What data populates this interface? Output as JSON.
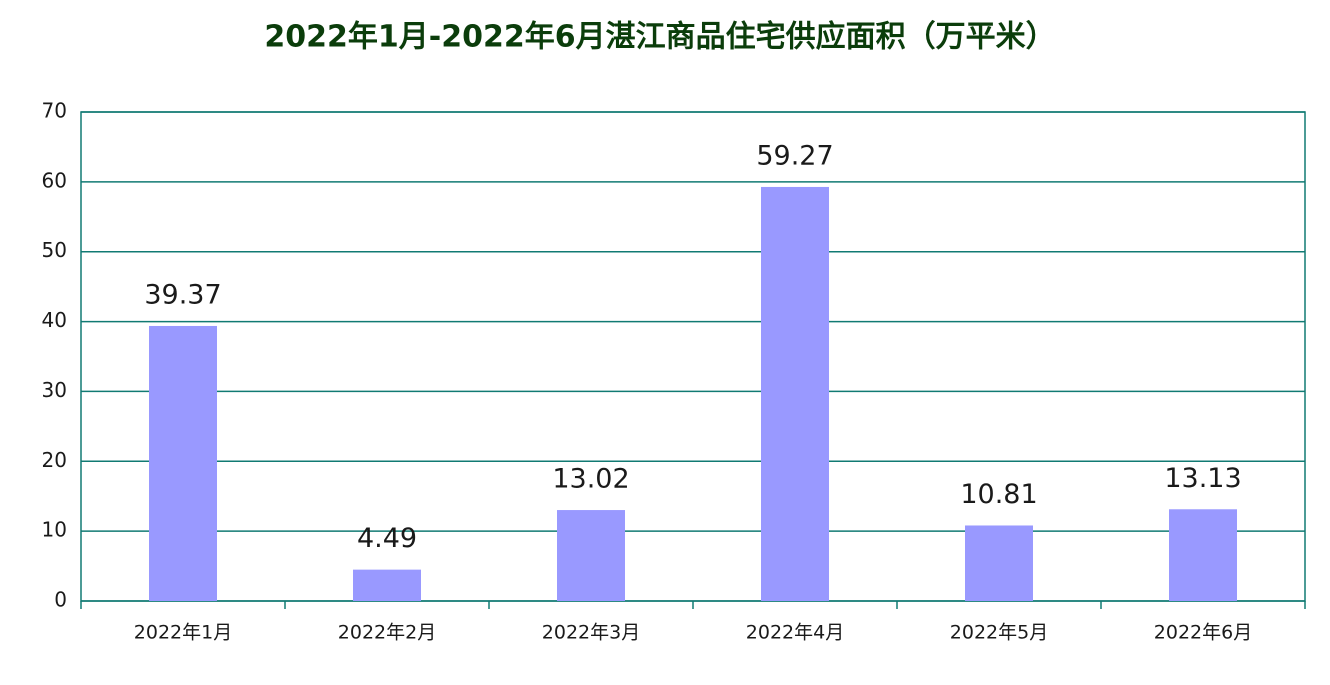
{
  "chart_data": {
    "type": "bar",
    "title": "2022年1月-2022年6月湛江商品住宅供应面积（万平米）",
    "categories": [
      "2022年1月",
      "2022年2月",
      "2022年3月",
      "2022年4月",
      "2022年5月",
      "2022年6月"
    ],
    "values": [
      39.37,
      4.49,
      13.02,
      59.27,
      10.81,
      13.13
    ],
    "color": "#9999ff",
    "ylim": [
      0,
      70
    ],
    "yticks": [
      0,
      10,
      20,
      30,
      40,
      50,
      60,
      70
    ],
    "grid": true
  }
}
